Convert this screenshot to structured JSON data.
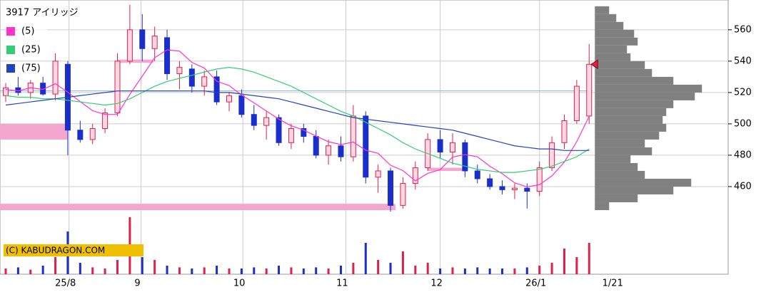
{
  "chart_data": {
    "type": "candlestick",
    "title": "3917 アイリッジ",
    "copyright": "(C) KABUDRAGON.COM",
    "ohlc": [
      [
        518,
        526,
        514,
        523
      ],
      [
        523,
        530,
        518,
        520
      ],
      [
        520,
        528,
        516,
        526
      ],
      [
        526,
        530,
        518,
        519
      ],
      [
        519,
        545,
        515,
        540
      ],
      [
        538,
        540,
        480,
        496
      ],
      [
        496,
        502,
        488,
        490
      ],
      [
        490,
        500,
        487,
        497
      ],
      [
        497,
        510,
        494,
        507
      ],
      [
        507,
        545,
        505,
        540
      ],
      [
        540,
        576,
        538,
        560
      ],
      [
        560,
        570,
        540,
        548
      ],
      [
        548,
        562,
        540,
        556
      ],
      [
        555,
        560,
        528,
        532
      ],
      [
        532,
        540,
        522,
        536
      ],
      [
        535,
        538,
        520,
        524
      ],
      [
        524,
        534,
        518,
        530
      ],
      [
        530,
        534,
        512,
        514
      ],
      [
        514,
        520,
        508,
        518
      ],
      [
        518,
        522,
        504,
        506
      ],
      [
        506,
        512,
        496,
        499
      ],
      [
        499,
        508,
        490,
        504
      ],
      [
        504,
        506,
        486,
        488
      ],
      [
        488,
        500,
        484,
        497
      ],
      [
        497,
        500,
        488,
        492
      ],
      [
        492,
        496,
        478,
        480
      ],
      [
        480,
        490,
        474,
        486
      ],
      [
        486,
        492,
        476,
        479
      ],
      [
        479,
        512,
        476,
        505
      ],
      [
        505,
        508,
        462,
        466
      ],
      [
        466,
        474,
        456,
        470
      ],
      [
        470,
        472,
        444,
        448
      ],
      [
        448,
        466,
        446,
        462
      ],
      [
        462,
        476,
        458,
        472
      ],
      [
        472,
        494,
        470,
        490
      ],
      [
        490,
        496,
        478,
        482
      ],
      [
        482,
        494,
        474,
        488
      ],
      [
        488,
        490,
        466,
        470
      ],
      [
        470,
        474,
        462,
        465
      ],
      [
        465,
        468,
        458,
        460
      ],
      [
        460,
        464,
        455,
        458
      ],
      [
        458,
        462,
        452,
        459
      ],
      [
        459,
        462,
        446,
        457
      ],
      [
        457,
        476,
        454,
        472
      ],
      [
        472,
        492,
        470,
        488
      ],
      [
        488,
        506,
        484,
        502
      ],
      [
        502,
        528,
        500,
        524
      ],
      [
        505,
        551,
        500,
        538
      ]
    ],
    "volume": [
      10,
      12,
      8,
      15,
      30,
      75,
      20,
      12,
      10,
      25,
      100,
      30,
      25,
      15,
      12,
      10,
      12,
      15,
      10,
      10,
      12,
      10,
      15,
      12,
      10,
      12,
      10,
      15,
      20,
      55,
      25,
      20,
      40,
      15,
      20,
      10,
      12,
      10,
      12,
      10,
      10,
      10,
      12,
      15,
      20,
      45,
      30,
      55
    ],
    "series": [
      {
        "name": "(5)",
        "color": "#ff33cc",
        "values": [
          522,
          521,
          523,
          522,
          525.6,
          520.2,
          514.2,
          508.4,
          506,
          506,
          518.8,
          530.4,
          542.2,
          547.2,
          546.4,
          539.2,
          535.6,
          527.2,
          524.4,
          518.4,
          513.4,
          508.2,
          503,
          498.8,
          496,
          492.2,
          488.6,
          486.8,
          488.4,
          483.2,
          481.2,
          473.6,
          470.2,
          463.6,
          468.4,
          470.8,
          478.8,
          480.4,
          479,
          473,
          468.2,
          462.4,
          459.8,
          461.2,
          466.8,
          475.6,
          488.6,
          504.8
        ]
      },
      {
        "name": "(25)",
        "color": "#33cc77",
        "values": [
          518,
          517,
          517,
          516,
          516,
          515,
          514,
          513,
          512,
          513,
          516,
          520,
          524,
          527,
          529,
          531,
          533,
          535,
          536,
          535,
          533,
          530,
          527,
          524,
          520,
          516,
          512,
          508,
          505,
          501,
          497,
          493,
          488,
          484,
          481,
          478,
          475,
          473,
          471,
          470,
          469,
          469,
          470,
          471,
          473,
          476,
          479,
          484
        ]
      },
      {
        "name": "(75)",
        "color": "#2244bb",
        "values": [
          512,
          513,
          514,
          515,
          516,
          517,
          518,
          519,
          520,
          521,
          521,
          521,
          521,
          521,
          521,
          521,
          521,
          520,
          520,
          519,
          518,
          517,
          516,
          514,
          512,
          510,
          508,
          506,
          504,
          503,
          502,
          501,
          500,
          499,
          498,
          497,
          496,
          494,
          492,
          490,
          488,
          486,
          485,
          484,
          484,
          483,
          483,
          483
        ]
      }
    ],
    "up_color": "#e0204a",
    "down_color": "#1a2ecc",
    "ylim": [
      430,
      579
    ],
    "yticks": [
      460,
      480,
      500,
      520,
      540,
      560
    ],
    "xlim": [
      -0.46,
      58.2
    ],
    "xticks": [
      {
        "value": 5.1,
        "label": "25/8"
      },
      {
        "value": 10.9,
        "label": "9"
      },
      {
        "value": 19.1,
        "label": "10"
      },
      {
        "value": 27.4,
        "label": "11"
      },
      {
        "value": 35,
        "label": "12"
      },
      {
        "value": 43,
        "label": "26/1"
      }
    ],
    "current_date": "1/21",
    "last_price": 538,
    "ref_line": 521,
    "zones": [
      {
        "low": 490,
        "high": 500,
        "from": -0.46,
        "to": 5
      },
      {
        "low": 445,
        "high": 449,
        "from": -0.46,
        "to": 31.4
      },
      {
        "low": 539,
        "high": 541,
        "from": 9,
        "to": 11.9
      },
      {
        "low": 470,
        "high": 472,
        "from": 34,
        "to": 36.9
      }
    ],
    "zone_color": "#f4a6cf",
    "profile": {
      "color": "#808080",
      "edges": [
        445,
        450,
        455,
        460,
        465,
        470,
        475,
        480,
        485,
        490,
        495,
        500,
        505,
        510,
        515,
        520,
        525,
        530,
        535,
        540,
        545,
        550,
        555,
        560,
        565,
        570,
        575
      ],
      "counts": [
        20,
        60,
        110,
        135,
        70,
        60,
        50,
        80,
        70,
        90,
        100,
        95,
        100,
        110,
        140,
        150,
        110,
        80,
        70,
        50,
        45,
        60,
        55,
        40,
        30,
        20
      ]
    },
    "plim": [
      0,
      160
    ],
    "vlim": [
      0,
      100
    ],
    "grid": true
  }
}
